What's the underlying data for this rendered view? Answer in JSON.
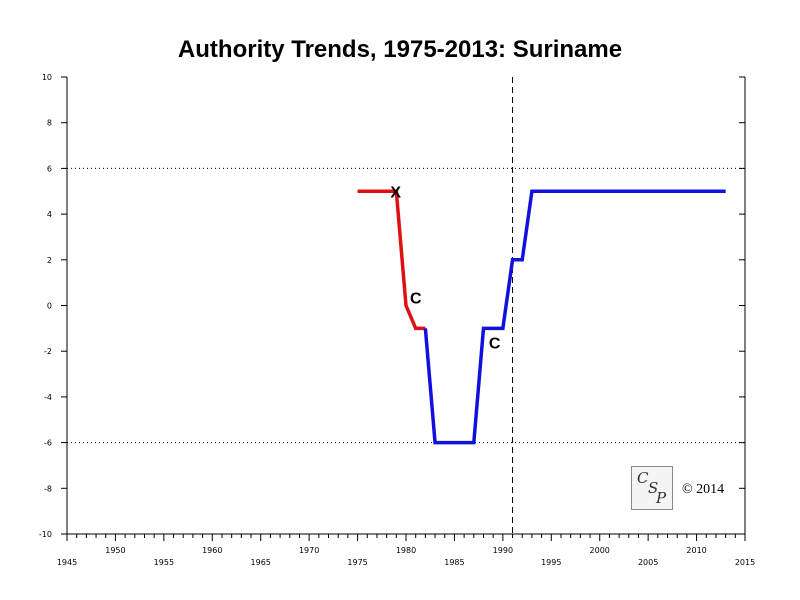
{
  "logo": {
    "letters": [
      "C",
      "S",
      "P"
    ]
  },
  "copyright": "© 2014",
  "chart_data": {
    "type": "line",
    "title": "Authority Trends, 1975-2013: Suriname",
    "xlabel": "",
    "ylabel": "",
    "xlim": [
      1945,
      2015
    ],
    "ylim": [
      -10,
      10
    ],
    "x_ticks_lower": [
      1945,
      1955,
      1965,
      1975,
      1985,
      1995,
      2005,
      2015
    ],
    "x_ticks_upper": [
      1950,
      1960,
      1970,
      1980,
      1990,
      2000,
      2010
    ],
    "y_ticks": [
      10,
      8,
      6,
      4,
      2,
      0,
      -2,
      -4,
      -6,
      -8,
      -10
    ],
    "reference_lines": {
      "horizontal_dotted": [
        6,
        -6
      ],
      "vertical_dashed": [
        1991
      ]
    },
    "grid": false,
    "legend": "none",
    "series": [
      {
        "color": "#dd1111",
        "points": [
          [
            1975,
            5
          ],
          [
            1979,
            5
          ],
          [
            1980,
            0
          ],
          [
            1981,
            -1
          ],
          [
            1982,
            -1
          ]
        ]
      },
      {
        "color": "#1111dd",
        "points": [
          [
            1982,
            -1
          ],
          [
            1983,
            -6
          ],
          [
            1987,
            -6
          ],
          [
            1988,
            -1
          ],
          [
            1990,
            -1
          ],
          [
            1991,
            2
          ],
          [
            1992,
            2
          ],
          [
            1993,
            5
          ],
          [
            2013,
            5
          ]
        ]
      }
    ],
    "annotations": [
      {
        "text": "X",
        "x": 1979,
        "y": 5
      },
      {
        "text": "C",
        "x": 1980,
        "y": 0
      },
      {
        "text": "C",
        "x": 1990,
        "y": -1
      }
    ]
  }
}
